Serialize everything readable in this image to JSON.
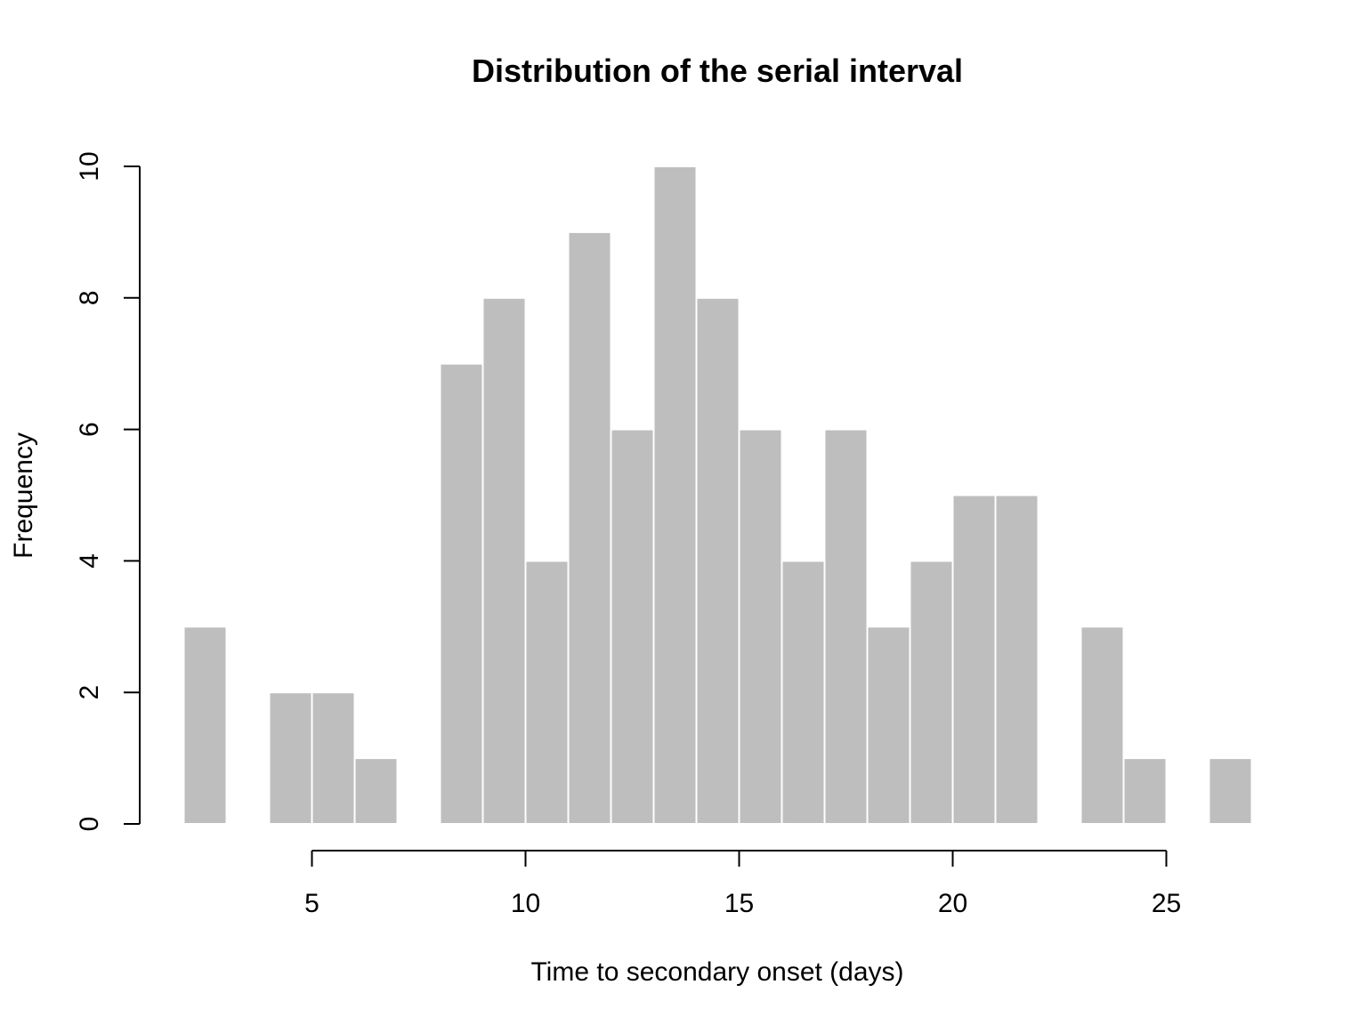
{
  "chart_data": {
    "type": "bar",
    "title": "Distribution of the serial interval",
    "xlabel": "Time to secondary onset (days)",
    "ylabel": "Frequency",
    "bins": [
      {
        "start": 2,
        "end": 3,
        "count": 3
      },
      {
        "start": 3,
        "end": 4,
        "count": 0
      },
      {
        "start": 4,
        "end": 5,
        "count": 2
      },
      {
        "start": 5,
        "end": 6,
        "count": 2
      },
      {
        "start": 6,
        "end": 7,
        "count": 1
      },
      {
        "start": 7,
        "end": 8,
        "count": 0
      },
      {
        "start": 8,
        "end": 9,
        "count": 7
      },
      {
        "start": 9,
        "end": 10,
        "count": 8
      },
      {
        "start": 10,
        "end": 11,
        "count": 4
      },
      {
        "start": 11,
        "end": 12,
        "count": 9
      },
      {
        "start": 12,
        "end": 13,
        "count": 6
      },
      {
        "start": 13,
        "end": 14,
        "count": 10
      },
      {
        "start": 14,
        "end": 15,
        "count": 8
      },
      {
        "start": 15,
        "end": 16,
        "count": 6
      },
      {
        "start": 16,
        "end": 17,
        "count": 4
      },
      {
        "start": 17,
        "end": 18,
        "count": 6
      },
      {
        "start": 18,
        "end": 19,
        "count": 3
      },
      {
        "start": 19,
        "end": 20,
        "count": 4
      },
      {
        "start": 20,
        "end": 21,
        "count": 5
      },
      {
        "start": 21,
        "end": 22,
        "count": 5
      },
      {
        "start": 22,
        "end": 23,
        "count": 0
      },
      {
        "start": 23,
        "end": 24,
        "count": 3
      },
      {
        "start": 24,
        "end": 25,
        "count": 1
      },
      {
        "start": 25,
        "end": 26,
        "count": 0
      },
      {
        "start": 26,
        "end": 27,
        "count": 1
      }
    ],
    "xlim": [
      2,
      27
    ],
    "ylim": [
      0,
      10
    ],
    "x_ticks": [
      5,
      10,
      15,
      20,
      25
    ],
    "y_ticks": [
      0,
      2,
      4,
      6,
      8,
      10
    ],
    "bar_fill": "#bebebe",
    "bar_border": "#ffffff",
    "grid": false,
    "legend": "none"
  }
}
